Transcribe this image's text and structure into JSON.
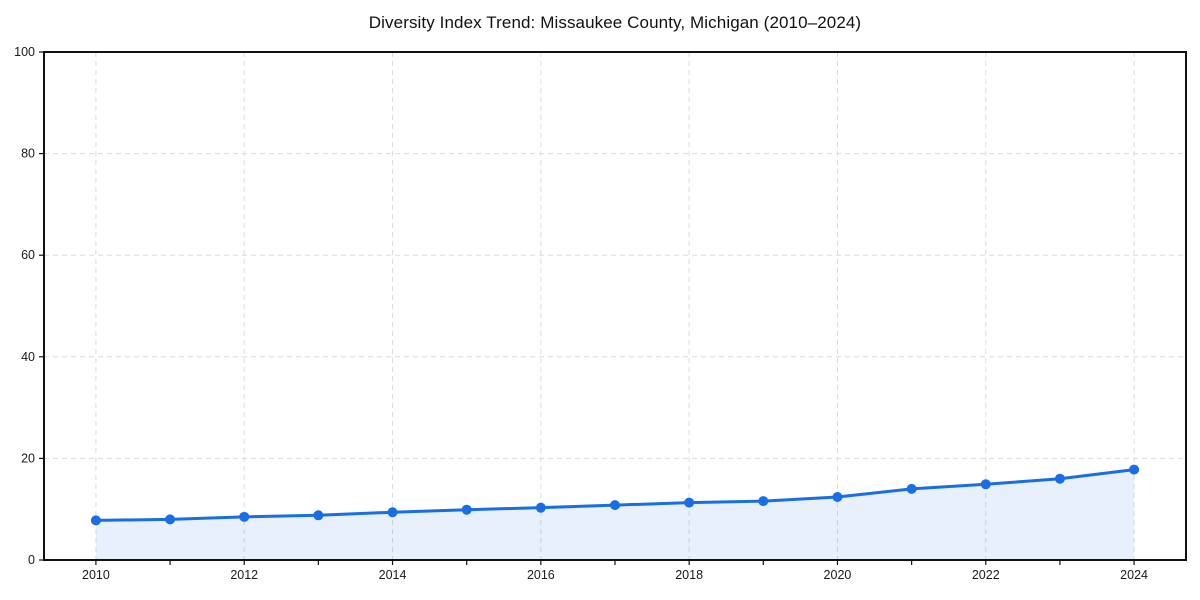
{
  "chart_data": {
    "type": "line",
    "title": "Diversity Index Trend: Missaukee County, Michigan (2010–2024)",
    "xlabel": "",
    "ylabel": "",
    "x": [
      2010,
      2011,
      2012,
      2013,
      2014,
      2015,
      2016,
      2017,
      2018,
      2019,
      2020,
      2021,
      2022,
      2023,
      2024
    ],
    "series": [
      {
        "name": "Diversity Index",
        "values": [
          7.8,
          8.0,
          8.5,
          8.8,
          9.4,
          9.9,
          10.3,
          10.8,
          11.3,
          11.6,
          12.4,
          14.0,
          14.9,
          16.0,
          17.8
        ]
      }
    ],
    "ylim": [
      0,
      100
    ],
    "xlim": [
      2009.3,
      2024.7
    ],
    "yticks": [
      0,
      20,
      40,
      60,
      80,
      100
    ],
    "ytick_labels": [
      "0",
      "20",
      "40",
      "60",
      "80",
      "100"
    ],
    "xticks_labeled": [
      2010,
      2012,
      2014,
      2016,
      2018,
      2020,
      2022,
      2024
    ],
    "xtick_labels": [
      "2010",
      "2012",
      "2014",
      "2016",
      "2018",
      "2020",
      "2022",
      "2024"
    ],
    "xticks_minor_every": 1,
    "grid": "dashed",
    "legend": "none",
    "marker": "circle",
    "colors": {
      "line": "#1a6ee5",
      "fill": "#1a6ee5",
      "fill_opacity": 0.1,
      "grid": "#dcdcdc",
      "spine": "#111111",
      "tick_text": "#1a1a1a",
      "background": "#ffffff"
    }
  }
}
